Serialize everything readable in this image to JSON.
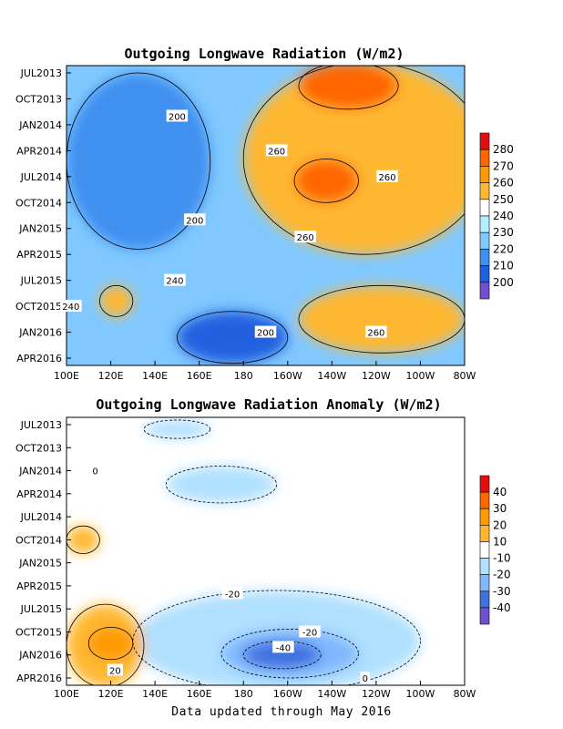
{
  "footer": "Data updated through May 2016",
  "chart_data": [
    {
      "type": "heatmap",
      "title": "Outgoing Longwave Radiation (W/m2)",
      "x_axis": [
        "100E",
        "120E",
        "140E",
        "160E",
        "180",
        "160W",
        "140W",
        "120W",
        "100W",
        "80W"
      ],
      "y_axis": [
        "JUL2013",
        "OCT2013",
        "JAN2014",
        "APR2014",
        "JUL2014",
        "OCT2014",
        "JAN2015",
        "APR2015",
        "JUL2015",
        "OCT2015",
        "JAN2016",
        "APR2016"
      ],
      "colorbar": {
        "ticks": [
          "280",
          "270",
          "260",
          "250",
          "240",
          "230",
          "220",
          "210",
          "200"
        ],
        "colors": [
          "#e01010",
          "#ff6600",
          "#ff9a00",
          "#ffb830",
          "#ffffff",
          "#b0f0ff",
          "#80c8ff",
          "#4090f0",
          "#2060e0",
          "#7050d0"
        ]
      },
      "contour_labels": [
        {
          "text": "200",
          "lon": 150,
          "time": 2013.917
        },
        {
          "text": "260",
          "lon": 195,
          "time": 2014.25
        },
        {
          "text": "260",
          "lon": 245,
          "time": 2014.5
        },
        {
          "text": "200",
          "lon": 158,
          "time": 2014.917
        },
        {
          "text": "260",
          "lon": 208,
          "time": 2015.083
        },
        {
          "text": "240",
          "lon": 149,
          "time": 2015.5
        },
        {
          "text": "240",
          "lon": 102,
          "time": 2015.75
        },
        {
          "text": "200",
          "lon": 190,
          "time": 2016.0
        },
        {
          "text": "260",
          "lon": 240,
          "time": 2016.0
        }
      ],
      "features": [
        {
          "lon_min": 180,
          "lon_max": 290,
          "t_min": 2013.4,
          "t_max": 2015.25,
          "value": 255
        },
        {
          "lon_min": 205,
          "lon_max": 280,
          "t_min": 2015.55,
          "t_max": 2016.2,
          "value": 255
        },
        {
          "lon_min": 205,
          "lon_max": 250,
          "t_min": 2013.4,
          "t_max": 2013.85,
          "value": 272
        },
        {
          "lon_min": 203,
          "lon_max": 232,
          "t_min": 2014.33,
          "t_max": 2014.75,
          "value": 272
        },
        {
          "lon_min": 100,
          "lon_max": 165,
          "t_min": 2013.5,
          "t_max": 2015.2,
          "value": 215
        },
        {
          "lon_min": 150,
          "lon_max": 200,
          "t_min": 2015.8,
          "t_max": 2016.3,
          "value": 205
        },
        {
          "lon_min": 115,
          "lon_max": 130,
          "t_min": 2015.55,
          "t_max": 2015.85,
          "value": 250
        }
      ]
    },
    {
      "type": "heatmap",
      "title": "Outgoing Longwave Radiation Anomaly (W/m2)",
      "x_axis": [
        "100E",
        "120E",
        "140E",
        "160E",
        "180",
        "160W",
        "140W",
        "120W",
        "100W",
        "80W"
      ],
      "y_axis": [
        "JUL2013",
        "OCT2013",
        "JAN2014",
        "APR2014",
        "JUL2014",
        "OCT2014",
        "JAN2015",
        "APR2015",
        "JUL2015",
        "OCT2015",
        "JAN2016",
        "APR2016"
      ],
      "colorbar": {
        "ticks": [
          "40",
          "30",
          "20",
          "10",
          "-10",
          "-20",
          "-30",
          "-40"
        ],
        "colors": [
          "#e01010",
          "#ff6600",
          "#ff9a00",
          "#ffb830",
          "#ffffff",
          "#b0e0ff",
          "#80b8ff",
          "#4070e0",
          "#7050d0"
        ]
      },
      "contour_labels": [
        {
          "text": "0",
          "lon": 113,
          "time": 2014.0
        },
        {
          "text": "-20",
          "lon": 175,
          "time": 2015.333
        },
        {
          "text": "-20",
          "lon": 210,
          "time": 2015.75
        },
        {
          "text": "-40",
          "lon": 198,
          "time": 2015.917
        },
        {
          "text": "20",
          "lon": 122,
          "time": 2016.167
        },
        {
          "text": "0",
          "lon": 235,
          "time": 2016.25
        }
      ],
      "features": [
        {
          "lon_min": 130,
          "lon_max": 260,
          "t_min": 2015.3,
          "t_max": 2016.4,
          "value": -15
        },
        {
          "lon_min": 170,
          "lon_max": 232,
          "t_min": 2015.72,
          "t_max": 2016.25,
          "value": -25
        },
        {
          "lon_min": 180,
          "lon_max": 215,
          "t_min": 2015.85,
          "t_max": 2016.15,
          "value": -35
        },
        {
          "lon_min": 100,
          "lon_max": 135,
          "t_min": 2015.45,
          "t_max": 2016.35,
          "value": 15
        },
        {
          "lon_min": 110,
          "lon_max": 130,
          "t_min": 2015.7,
          "t_max": 2016.05,
          "value": 25
        },
        {
          "lon_min": 145,
          "lon_max": 195,
          "t_min": 2013.95,
          "t_max": 2014.35,
          "value": -15
        },
        {
          "lon_min": 135,
          "lon_max": 165,
          "t_min": 2013.45,
          "t_max": 2013.65,
          "value": -15
        },
        {
          "lon_min": 100,
          "lon_max": 115,
          "t_min": 2014.6,
          "t_max": 2014.9,
          "value": 15
        }
      ]
    }
  ]
}
